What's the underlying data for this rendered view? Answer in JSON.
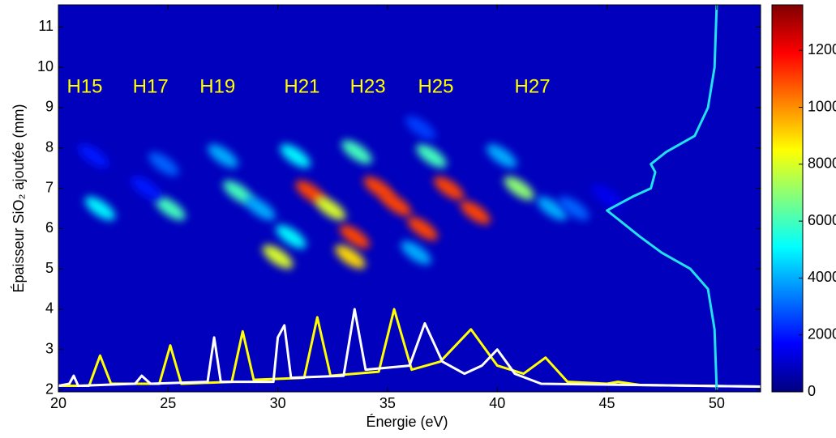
{
  "chart_data": {
    "type": "heatmap-spectra",
    "xlabel": "Énergie (eV)",
    "ylabel": "Épaisseur SiO₂ ajoutée (mm)",
    "xlim": [
      20,
      52
    ],
    "xticks": [
      20,
      25,
      30,
      35,
      40,
      45,
      50
    ],
    "ylim": [
      1.95,
      11.55
    ],
    "yticks": [
      2,
      3,
      4,
      5,
      6,
      7,
      8,
      9,
      10,
      11
    ],
    "clim": [
      0,
      13600
    ],
    "cticks": [
      0,
      2000,
      4000,
      6000,
      8000,
      10000,
      12000
    ],
    "heatmap": {
      "x": [
        21.9,
        21.6,
        25.1,
        24.8,
        24.0,
        28.2,
        27.5,
        29.2,
        30.8,
        30.6,
        30.0,
        31.5,
        32.4,
        33.6,
        33.5,
        33.3,
        34.6,
        35.4,
        37.0,
        36.3,
        36.5,
        36.6,
        37.8,
        39.0,
        40.2,
        41.0,
        42.5,
        43.5,
        45.0
      ],
      "y": [
        6.5,
        7.8,
        6.5,
        7.6,
        7.0,
        6.9,
        7.8,
        6.5,
        7.8,
        5.8,
        5.3,
        6.9,
        6.5,
        7.9,
        5.8,
        5.3,
        7.0,
        6.6,
        7.8,
        5.4,
        8.5,
        6.0,
        7.0,
        6.4,
        7.8,
        7.0,
        6.5,
        6.5,
        6.8
      ],
      "values": [
        5000,
        2000,
        6000,
        3000,
        2000,
        6000,
        4000,
        4000,
        5000,
        5000,
        8000,
        11000,
        8000,
        6000,
        11000,
        9000,
        11000,
        11000,
        6000,
        4000,
        2500,
        11000,
        11000,
        11000,
        4000,
        7000,
        4000,
        3000,
        1500
      ]
    },
    "series": [
      {
        "color": "#ffff00",
        "x": [
          20,
          21.4,
          21.9,
          22.4,
          24.6,
          25.1,
          25.6,
          27.9,
          28.4,
          28.9,
          31.2,
          31.8,
          32.4,
          34.6,
          35.3,
          36.1,
          37.4,
          38.8,
          40.0,
          41.2,
          42.2,
          43.2,
          45.0,
          45.5,
          46.5,
          52
        ],
        "values": [
          2.1,
          2.1,
          2.85,
          2.15,
          2.15,
          3.1,
          2.15,
          2.2,
          3.45,
          2.25,
          2.3,
          3.8,
          2.35,
          2.45,
          4.0,
          2.5,
          2.7,
          3.5,
          2.6,
          2.4,
          2.8,
          2.2,
          2.15,
          2.2,
          2.12,
          2.08
        ]
      },
      {
        "color": "#ffffff",
        "x": [
          20,
          20.5,
          20.7,
          20.9,
          23.5,
          23.8,
          24.2,
          26.8,
          27.1,
          27.4,
          29.8,
          30.0,
          30.3,
          30.6,
          33.0,
          33.5,
          34.0,
          36.0,
          36.7,
          37.5,
          38.5,
          39.3,
          40.0,
          40.8,
          42.0,
          52
        ],
        "values": [
          2.1,
          2.15,
          2.35,
          2.1,
          2.15,
          2.35,
          2.15,
          2.2,
          3.3,
          2.2,
          2.2,
          3.3,
          3.6,
          2.3,
          2.35,
          4.0,
          2.5,
          2.6,
          3.65,
          2.7,
          2.4,
          2.6,
          3.0,
          2.4,
          2.15,
          2.08
        ]
      },
      {
        "color": "#22e0f0",
        "x": [
          50.0,
          49.9,
          49.6,
          48.8,
          47.5,
          46.5,
          45.0,
          46.2,
          47.0,
          47.2,
          47.0,
          47.7,
          49.0,
          49.6,
          49.9,
          50.0
        ],
        "values": [
          2.0,
          3.5,
          4.5,
          5.0,
          5.4,
          5.8,
          6.45,
          6.8,
          7.0,
          7.4,
          7.6,
          7.9,
          8.3,
          9.0,
          10.0,
          11.55
        ]
      }
    ],
    "annotations": [
      {
        "text": "H15",
        "x": 21.2,
        "y": 9.5
      },
      {
        "text": "H17",
        "x": 24.2,
        "y": 9.5
      },
      {
        "text": "H19",
        "x": 27.25,
        "y": 9.5
      },
      {
        "text": "H21",
        "x": 31.1,
        "y": 9.5
      },
      {
        "text": "H23",
        "x": 34.1,
        "y": 9.5
      },
      {
        "text": "H25",
        "x": 37.2,
        "y": 9.5
      },
      {
        "text": "H27",
        "x": 41.6,
        "y": 9.5
      }
    ]
  }
}
